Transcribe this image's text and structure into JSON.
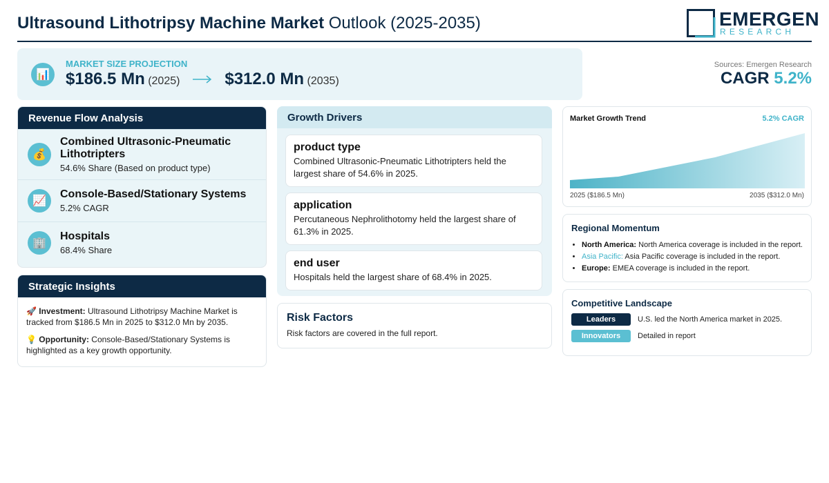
{
  "header": {
    "title_bold": "Ultrasound Lithotripsy Machine Market",
    "title_rest": "Outlook (2025-2035)",
    "logo": {
      "name": "EMERGEN",
      "subtitle": "RESEARCH"
    }
  },
  "projection": {
    "icon": "📊",
    "label": "MARKET SIZE PROJECTION",
    "start_value": "$186.5 Mn",
    "start_year": "(2025)",
    "end_value": "$312.0 Mn",
    "end_year": "(2035)"
  },
  "summary": {
    "sources": "Sources: Emergen Research",
    "cagr_label": "CAGR",
    "cagr_value": "5.2%"
  },
  "revenue_flow": {
    "title": "Revenue Flow Analysis",
    "items": [
      {
        "icon": "💰",
        "title": "Combined Ultrasonic-Pneumatic Lithotripters",
        "detail": "54.6% Share (Based on product type)"
      },
      {
        "icon": "📈",
        "title": "Console-Based/Stationary Systems",
        "detail": "5.2% CAGR"
      },
      {
        "icon": "🏢",
        "title": "Hospitals",
        "detail": "68.4% Share"
      }
    ]
  },
  "strategic_insights": {
    "title": "Strategic Insights",
    "items": [
      {
        "icon": "🚀",
        "label": "Investment:",
        "text": "Ultrasound Lithotripsy Machine Market is tracked from $186.5 Mn in 2025 to $312.0 Mn by 2035."
      },
      {
        "icon": "💡",
        "label": "Opportunity:",
        "text": "Console-Based/Stationary Systems is highlighted as a key growth opportunity."
      }
    ]
  },
  "growth_drivers": {
    "title": "Growth Drivers",
    "items": [
      {
        "title": "product type",
        "text": "Combined Ultrasonic-Pneumatic Lithotripters held the largest share of 54.6% in 2025."
      },
      {
        "title": "application",
        "text": "Percutaneous Nephrolithotomy held the largest share of 61.3% in 2025."
      },
      {
        "title": "end user",
        "text": "Hospitals held the largest share of 68.4% in 2025."
      }
    ]
  },
  "risk_factors": {
    "title": "Risk Factors",
    "text": "Risk factors are covered in the full report."
  },
  "market_trend": {
    "title": "Market Growth Trend",
    "badge": "5.2% CAGR",
    "start_label": "2025 ($186.5 Mn)",
    "end_label": "2035 ($312.0 Mn)"
  },
  "regional_momentum": {
    "title": "Regional Momentum",
    "items": [
      {
        "region": "North America:",
        "text": "North America coverage is included in the report."
      },
      {
        "region": "Asia Pacific:",
        "text": "Asia Pacific coverage is included in the report."
      },
      {
        "region": "Europe:",
        "text": "EMEA coverage is included in the report."
      }
    ]
  },
  "competitive_landscape": {
    "title": "Competitive Landscape",
    "items": [
      {
        "tag": "Leaders",
        "text": "U.S. led the North America market in 2025."
      },
      {
        "tag": "Innovators",
        "text": "Detailed in report"
      }
    ]
  }
}
